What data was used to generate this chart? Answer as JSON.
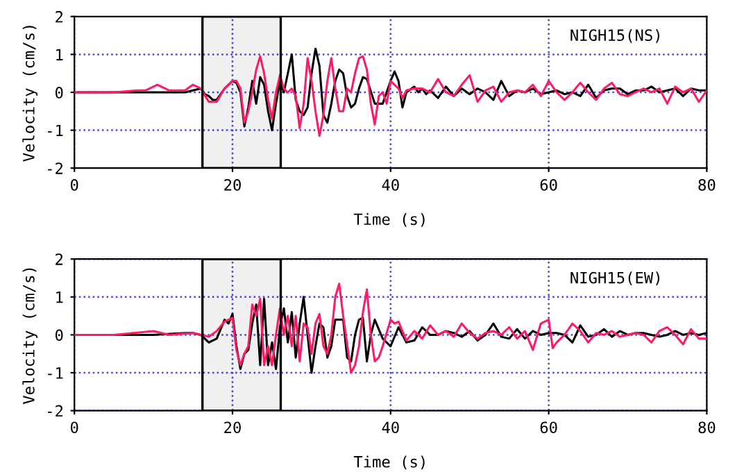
{
  "chart_data": [
    {
      "type": "line",
      "xlabel": "Time (s)",
      "ylabel": "Velocity (cm/s)",
      "xlim": [
        0,
        80
      ],
      "ylim": [
        -2,
        2
      ],
      "xticks": [
        0,
        20,
        40,
        60,
        80
      ],
      "yticks": [
        -2,
        -1,
        0,
        1,
        2
      ],
      "grid": true,
      "annotations": [
        "NIGH15(NS)"
      ],
      "bands": [
        {
          "axis": "x",
          "from": 16.2,
          "to": 26.1,
          "color": "#000000"
        }
      ],
      "series": [
        {
          "color": "#000000",
          "x": [
            0,
            5,
            10,
            14,
            15,
            16,
            16.5,
            17,
            17.5,
            18,
            19,
            20,
            20.5,
            21,
            21.5,
            22,
            22.5,
            23,
            23.5,
            24,
            24.5,
            25,
            25.5,
            26,
            26.5,
            27,
            27.5,
            28,
            28.5,
            29,
            29.5,
            30,
            30.5,
            31,
            31.5,
            32,
            32.5,
            33,
            33.5,
            34,
            34.5,
            35,
            35.5,
            36,
            36.5,
            37,
            38,
            39,
            40,
            40.5,
            41,
            41.5,
            42,
            43,
            43.5,
            44,
            44.5,
            45,
            46,
            47,
            48,
            49,
            50,
            51,
            52,
            53,
            54,
            55,
            56,
            57,
            58,
            59,
            60,
            61,
            62,
            63,
            64,
            65,
            66,
            67,
            68,
            69,
            70,
            71,
            72,
            73,
            74,
            75,
            76,
            77,
            78,
            79,
            80
          ],
          "values": [
            0,
            0,
            0,
            0,
            0.05,
            0.1,
            -0.05,
            -0.1,
            -0.2,
            -0.2,
            0.1,
            0.3,
            0.25,
            0,
            -0.9,
            -0.4,
            0.3,
            -0.3,
            0.4,
            0.2,
            -0.5,
            -1.0,
            -0.3,
            0.3,
            0,
            0.5,
            1.0,
            -0.2,
            -0.5,
            -0.6,
            -0.4,
            0.5,
            1.15,
            0.7,
            -0.6,
            -0.8,
            -0.3,
            0.3,
            0.6,
            0.5,
            -0.1,
            -0.4,
            -0.3,
            0.1,
            0.4,
            0.35,
            -0.3,
            -0.3,
            0.3,
            0.55,
            0.3,
            -0.4,
            0,
            0.15,
            0,
            0.1,
            -0.05,
            0.05,
            -0.15,
            0.15,
            -0.1,
            0.1,
            -0.05,
            0.1,
            0,
            -0.2,
            0.3,
            -0.1,
            0.05,
            0,
            0.1,
            -0.05,
            0,
            0.05,
            -0.05,
            0,
            -0.1,
            0.2,
            -0.15,
            0.05,
            0.1,
            0.1,
            -0.05,
            0.05,
            0.05,
            0.15,
            0,
            0.05,
            0.1,
            -0.1,
            0.1,
            0.05,
            0.05
          ]
        },
        {
          "color": "#ff1a66",
          "x": [
            0,
            5,
            8,
            9,
            10.5,
            12,
            14,
            15,
            16,
            17,
            18,
            19,
            20,
            20.5,
            21,
            21.5,
            22,
            22.5,
            23,
            23.5,
            24,
            24.5,
            25,
            25.5,
            26,
            26.5,
            27,
            27.5,
            28,
            28.5,
            29,
            29.5,
            30,
            30.5,
            31,
            31.5,
            32,
            32.5,
            33,
            33.5,
            34,
            34.5,
            35,
            35.5,
            36,
            36.5,
            37,
            37.5,
            38,
            38.5,
            39,
            39.5,
            40,
            41,
            41.5,
            42,
            43,
            44,
            45,
            46,
            47,
            48,
            49,
            50,
            51,
            52,
            53,
            54,
            55,
            56,
            57,
            58,
            59,
            60,
            61,
            62,
            63,
            64,
            65,
            66,
            67,
            68,
            69,
            70,
            71,
            72,
            73,
            74,
            75,
            76,
            77,
            78,
            79,
            80
          ],
          "values": [
            0,
            0,
            0.05,
            0.05,
            0.2,
            0.05,
            0.05,
            0.2,
            0.1,
            -0.25,
            -0.25,
            0.1,
            0.3,
            0.3,
            0.1,
            -0.8,
            -0.5,
            0,
            0.6,
            0.95,
            0.5,
            -0.2,
            -0.7,
            0,
            0.45,
            0.1,
            0,
            0.1,
            -0.1,
            -0.95,
            -0.3,
            0.9,
            0.3,
            -0.5,
            -1.15,
            -0.6,
            0.3,
            0.9,
            0.1,
            -0.5,
            -0.5,
            0.1,
            0,
            0.5,
            0.9,
            0.95,
            0.6,
            -0.3,
            -0.85,
            -0.1,
            0,
            -0.3,
            0.3,
            0.1,
            -0.15,
            0.05,
            0.1,
            0.1,
            0,
            0.35,
            0,
            -0.1,
            0.2,
            0.45,
            -0.25,
            0.05,
            0.15,
            -0.25,
            0,
            0.05,
            0,
            0.2,
            -0.1,
            0.3,
            0,
            -0.2,
            0,
            0.25,
            0,
            -0.2,
            0.1,
            0.25,
            -0.05,
            -0.1,
            0,
            0.1,
            0,
            0.1,
            -0.3,
            0.15,
            0,
            0.1,
            -0.25,
            0.05
          ]
        }
      ]
    },
    {
      "type": "line",
      "xlabel": "Time (s)",
      "ylabel": "Velocity (cm/s)",
      "xlim": [
        0,
        80
      ],
      "ylim": [
        -2,
        2
      ],
      "xticks": [
        0,
        20,
        40,
        60,
        80
      ],
      "yticks": [
        -2,
        -1,
        0,
        1,
        2
      ],
      "grid": true,
      "annotations": [
        "NIGH15(EW)"
      ],
      "bands": [
        {
          "axis": "x",
          "from": 16.2,
          "to": 26.1,
          "color": "#000000"
        }
      ],
      "series": [
        {
          "color": "#000000",
          "x": [
            0,
            5,
            10,
            14,
            15,
            16,
            17,
            18,
            19,
            19.5,
            20,
            20.5,
            21,
            21.5,
            22,
            22.5,
            23,
            23.5,
            24,
            24.5,
            25,
            25.5,
            26,
            26.5,
            27,
            27.5,
            28,
            28.5,
            29,
            29.5,
            30,
            30.5,
            31,
            31.5,
            32,
            32.5,
            33,
            34,
            34.5,
            35,
            35.5,
            36,
            36.5,
            37,
            37.5,
            38,
            39,
            40,
            41,
            42,
            43,
            44,
            45,
            46,
            47,
            48,
            49,
            50,
            51,
            52,
            53,
            54,
            55,
            56,
            57,
            58,
            59,
            60,
            61,
            62,
            63,
            64,
            65,
            66,
            67,
            68,
            69,
            70,
            71,
            72,
            73,
            74,
            75,
            76,
            77,
            78,
            79,
            80
          ],
          "values": [
            0,
            0,
            0,
            0.05,
            0.05,
            0,
            -0.2,
            -0.1,
            0.4,
            0.3,
            0.55,
            -0.3,
            -0.9,
            -0.5,
            -0.4,
            0.3,
            0.8,
            -0.8,
            0.95,
            -0.8,
            -0.2,
            -0.9,
            0.2,
            0.7,
            -0.2,
            0.6,
            -0.6,
            0.3,
            1.0,
            0,
            -1.0,
            -0.3,
            0.3,
            0.2,
            -0.6,
            -0.3,
            0.4,
            0.4,
            -0.6,
            -0.7,
            0,
            0.4,
            0.45,
            -0.7,
            0,
            0.4,
            -0.1,
            -0.3,
            0.2,
            -0.2,
            -0.15,
            0.2,
            0,
            0,
            0.1,
            0.05,
            -0.05,
            0.1,
            -0.15,
            0,
            0.3,
            -0.05,
            -0.1,
            0.15,
            -0.1,
            0.1,
            0,
            0.05,
            0.05,
            0,
            -0.2,
            0.25,
            -0.05,
            0,
            0.15,
            -0.05,
            0.1,
            0,
            0.05,
            0.05,
            0,
            -0.05,
            0,
            0.1,
            0,
            0.05,
            0,
            0.05
          ]
        },
        {
          "color": "#ff1a66",
          "x": [
            0,
            5,
            10,
            12,
            15,
            17,
            18,
            19,
            20,
            20.5,
            21,
            21.5,
            22,
            22.5,
            23,
            23.5,
            24,
            24.5,
            25,
            25.5,
            26,
            26.5,
            27,
            27.5,
            28,
            28.5,
            29,
            29.5,
            30,
            30.5,
            31,
            31.5,
            32,
            32.5,
            33,
            33.5,
            34,
            35,
            35.5,
            36,
            36.5,
            37,
            37.5,
            38,
            38.5,
            39,
            40,
            40.5,
            41,
            42,
            43,
            44,
            45,
            46,
            47,
            48,
            49,
            50,
            51,
            52,
            53,
            54,
            55,
            56,
            57,
            58,
            59,
            60,
            60.5,
            61,
            62,
            63,
            64,
            65,
            66,
            67,
            68,
            69,
            70,
            71,
            72,
            73,
            74,
            75,
            76,
            77,
            78,
            79,
            80
          ],
          "values": [
            0,
            0,
            0.1,
            0,
            0.05,
            -0.05,
            0.1,
            0.35,
            0.45,
            -0.4,
            -0.8,
            -0.5,
            -0.3,
            0.8,
            0.5,
            0.95,
            -0.8,
            -0.3,
            -0.8,
            0,
            0.7,
            0,
            0.5,
            -0.3,
            0.5,
            -0.7,
            0.3,
            0.2,
            -0.5,
            0.3,
            0.55,
            -0.3,
            -0.5,
            0,
            1.0,
            1.35,
            0.5,
            -1.0,
            -0.8,
            -0.3,
            0.6,
            1.2,
            0,
            -0.7,
            -0.6,
            -0.3,
            0.4,
            0.3,
            0.35,
            -0.15,
            0.1,
            -0.1,
            0.25,
            0,
            0.1,
            -0.05,
            0.3,
            0.05,
            -0.1,
            0.05,
            0.1,
            0,
            0.2,
            -0.1,
            0.1,
            -0.4,
            0.3,
            0.4,
            -0.35,
            -0.2,
            0,
            0.3,
            0.1,
            -0.2,
            0.05,
            0,
            0.1,
            -0.05,
            0,
            0.05,
            0,
            -0.2,
            0.1,
            0.2,
            0,
            -0.25,
            0.15,
            -0.1,
            -0.1
          ]
        }
      ]
    }
  ]
}
